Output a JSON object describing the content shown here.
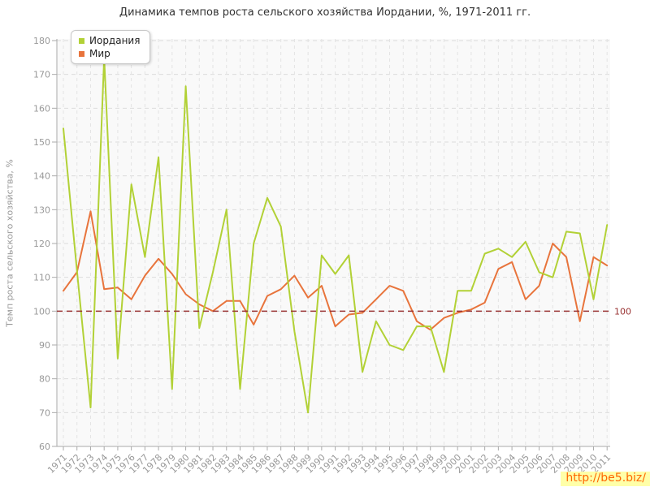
{
  "title": "Динамика темпов роста сельского хозяйства Иордании, %, 1971-2011 гг.",
  "legend": [
    {
      "label": "Иордания",
      "color": "#b2d136"
    },
    {
      "label": "Мир",
      "color": "#e8743c"
    }
  ],
  "y_axis": {
    "title": "Темп роста сельского хозяйства, %",
    "tick_labels": [
      60,
      70,
      80,
      90,
      100,
      110,
      120,
      130,
      140,
      150,
      160,
      170,
      180
    ]
  },
  "x_axis": {
    "years": [
      "1971",
      "1972",
      "1973",
      "1974",
      "1975",
      "1976",
      "1977",
      "1978",
      "1979",
      "1980",
      "1981",
      "1982",
      "1983",
      "1984",
      "1985",
      "1986",
      "1987",
      "1988",
      "1989",
      "1990",
      "1991",
      "1992",
      "1993",
      "1994",
      "1995",
      "1996",
      "1997",
      "1998",
      "1999",
      "2000",
      "2001",
      "2002",
      "2003",
      "2004",
      "2005",
      "2006",
      "2007",
      "2008",
      "2009",
      "2010",
      "2011"
    ]
  },
  "reference_line": {
    "value": 100,
    "label": "100",
    "color": "#993333"
  },
  "watermark": {
    "text": "http://be5.biz/"
  },
  "chart_data": {
    "type": "line",
    "title": "Динамика темпов роста сельского хозяйства Иордании, %, 1971-2011 гг.",
    "xlabel": "",
    "ylabel": "Темп роста сельского хозяйства, %",
    "ylim": [
      60,
      180
    ],
    "grid": true,
    "legend_position": "top-left",
    "x": [
      1971,
      1972,
      1973,
      1974,
      1975,
      1976,
      1977,
      1978,
      1979,
      1980,
      1981,
      1982,
      1983,
      1984,
      1985,
      1986,
      1987,
      1988,
      1989,
      1990,
      1991,
      1992,
      1993,
      1994,
      1995,
      1996,
      1997,
      1998,
      1999,
      2000,
      2001,
      2002,
      2003,
      2004,
      2005,
      2006,
      2007,
      2008,
      2009,
      2010,
      2011
    ],
    "series": [
      {
        "name": "Иордания",
        "color": "#b2d136",
        "values": [
          154,
          112,
          71.5,
          175,
          86,
          137.5,
          116,
          145.5,
          77,
          166.5,
          95,
          111.5,
          130,
          77,
          120,
          133.5,
          125,
          94,
          70,
          116.5,
          111,
          116.5,
          82,
          97,
          90,
          88.5,
          95.5,
          95.5,
          82,
          106,
          106,
          117,
          118.5,
          116,
          120.5,
          111.5,
          110,
          123.5,
          123,
          103.5,
          125.5
        ]
      },
      {
        "name": "Мир",
        "color": "#e8743c",
        "values": [
          106,
          111.5,
          129.5,
          106.5,
          107,
          103.5,
          110.5,
          115.5,
          111,
          105,
          102,
          100,
          103,
          103,
          96,
          104.5,
          106.5,
          110.5,
          104,
          107.5,
          95.5,
          99,
          99.5,
          103.5,
          107.5,
          106,
          97,
          94.5,
          98,
          99.5,
          100.5,
          102.5,
          112.5,
          114.5,
          103.5,
          107.5,
          120,
          116,
          97,
          116,
          113.5
        ]
      }
    ]
  }
}
